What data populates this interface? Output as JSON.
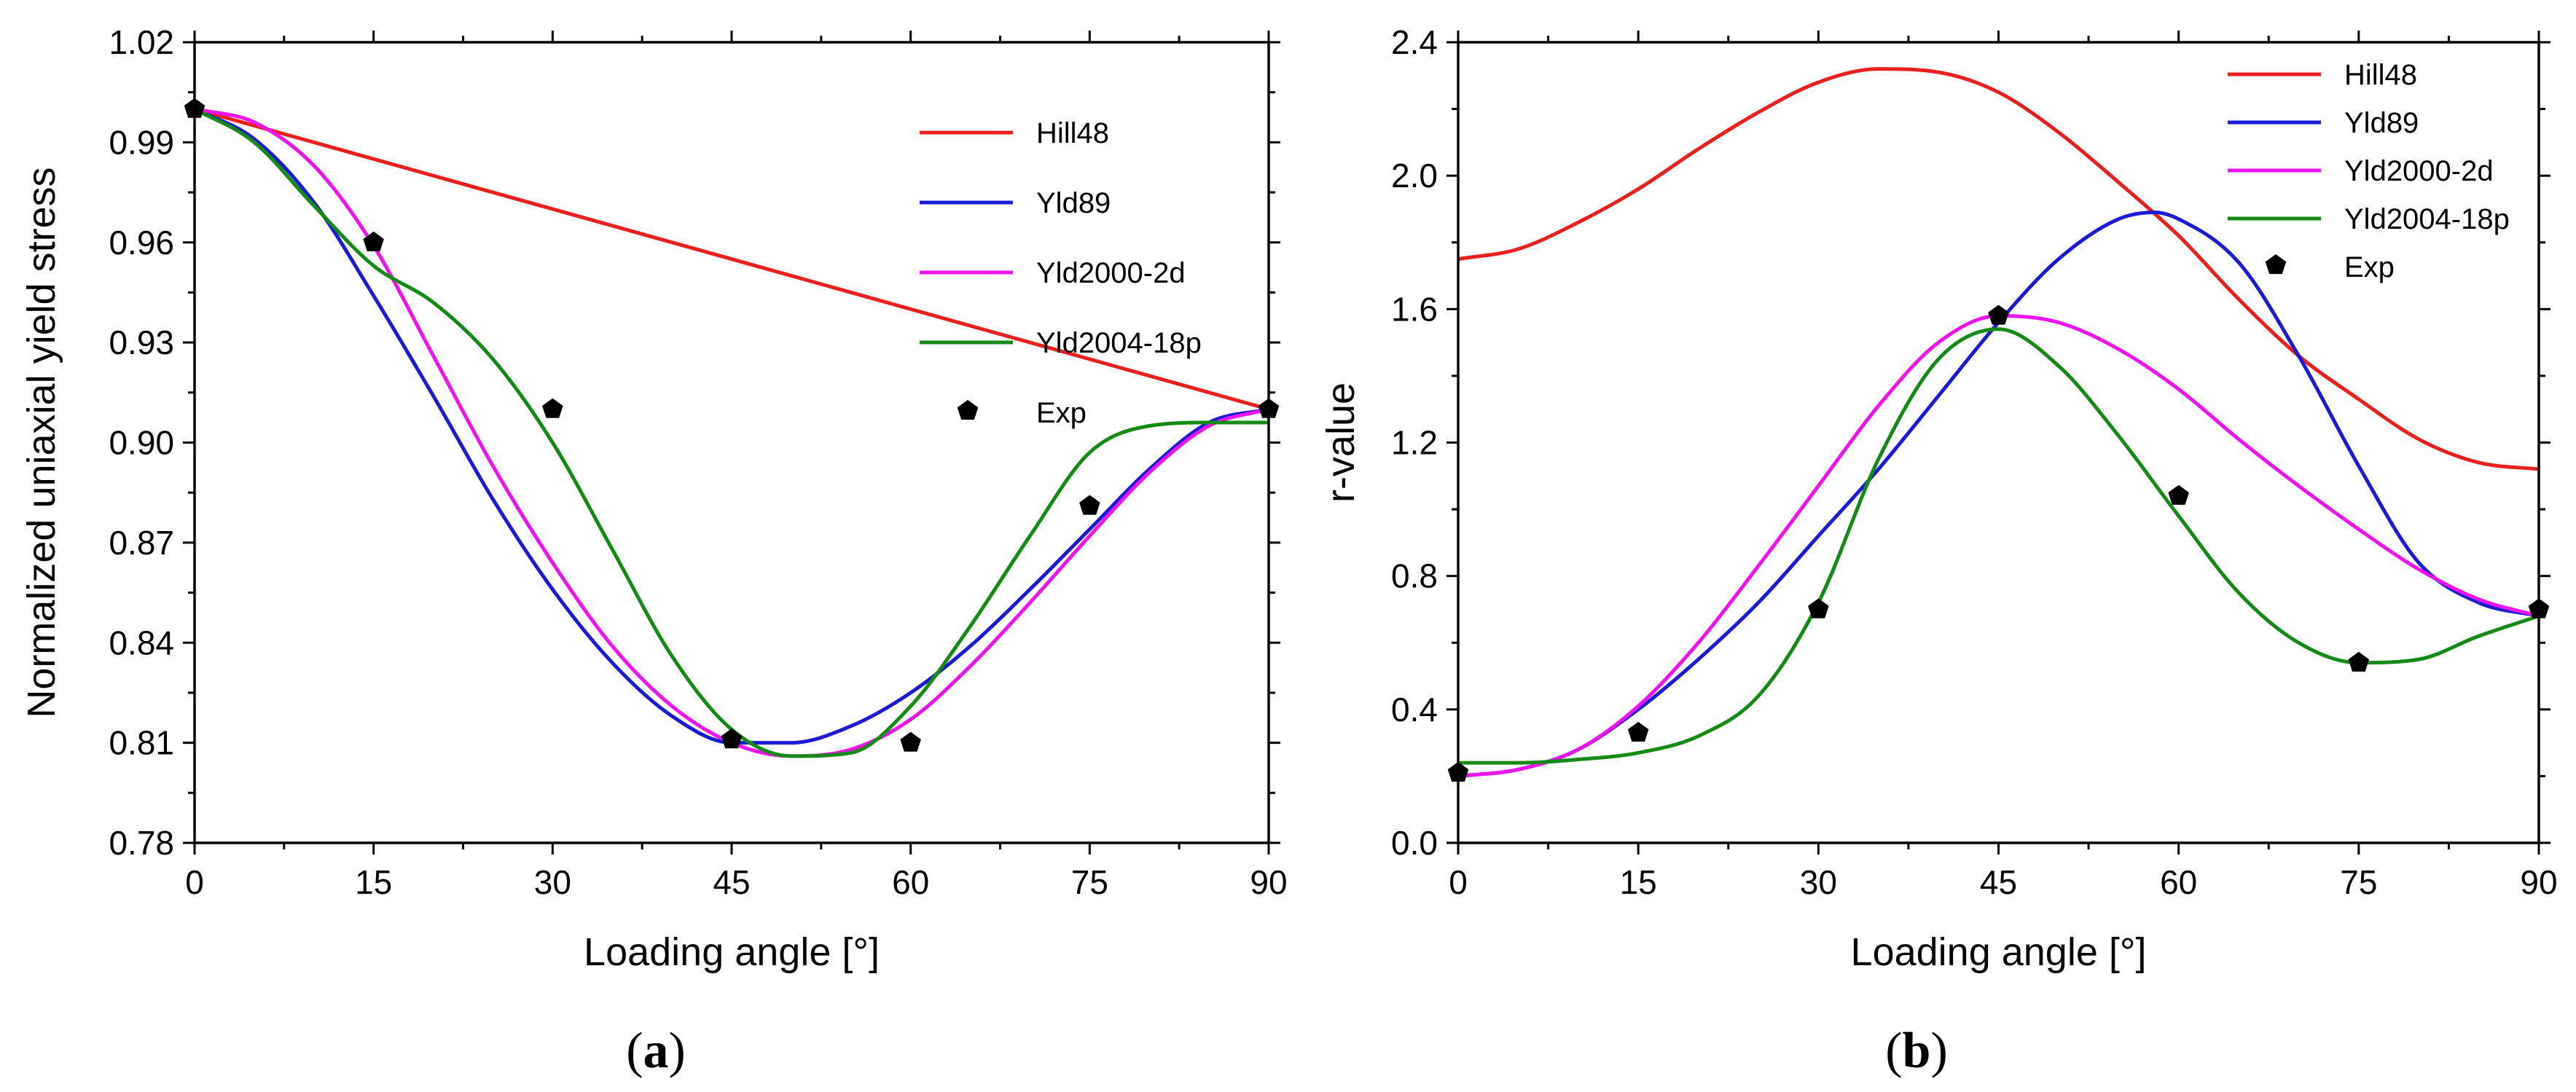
{
  "chart_data": [
    {
      "type": "line",
      "panel_label": "a",
      "xlabel": "Loading angle [°]",
      "ylabel": "Normalized uniaxial yield stress",
      "xlim": [
        0,
        90
      ],
      "ylim": [
        0.78,
        1.02
      ],
      "xticks": [
        0,
        15,
        30,
        45,
        60,
        75,
        90
      ],
      "xtick_labels": [
        "0",
        "15",
        "30",
        "45",
        "60",
        "75",
        "90"
      ],
      "yticks": [
        0.78,
        0.81,
        0.84,
        0.87,
        0.9,
        0.93,
        0.96,
        0.99,
        1.02
      ],
      "ytick_labels": [
        "0.78",
        "0.81",
        "0.84",
        "0.87",
        "0.90",
        "0.93",
        "0.96",
        "0.99",
        "1.02"
      ],
      "legend_position": "top-right",
      "series": [
        {
          "name": "Hill48",
          "color": "#e8201e",
          "x": [
            0,
            90
          ],
          "y": [
            1.0,
            0.91
          ]
        },
        {
          "name": "Yld89",
          "color": "#1b1bd4",
          "x": [
            0,
            5,
            10,
            15,
            20,
            25,
            30,
            35,
            40,
            45,
            50,
            55,
            60,
            65,
            70,
            75,
            80,
            85,
            90
          ],
          "y": [
            1.0,
            0.991,
            0.972,
            0.944,
            0.914,
            0.883,
            0.856,
            0.834,
            0.818,
            0.81,
            0.81,
            0.815,
            0.825,
            0.839,
            0.856,
            0.874,
            0.892,
            0.906,
            0.91
          ]
        },
        {
          "name": "Yld2000-2d",
          "color": "#ee14ee",
          "x": [
            0,
            5,
            10,
            15,
            20,
            25,
            30,
            35,
            40,
            45,
            50,
            55,
            60,
            65,
            70,
            75,
            80,
            85,
            90
          ],
          "y": [
            1.0,
            0.996,
            0.983,
            0.959,
            0.926,
            0.893,
            0.864,
            0.839,
            0.821,
            0.81,
            0.806,
            0.808,
            0.817,
            0.833,
            0.852,
            0.872,
            0.891,
            0.905,
            0.91
          ]
        },
        {
          "name": "Yld2004-18p",
          "color": "#168a16",
          "x": [
            0,
            5,
            10,
            15,
            20,
            25,
            30,
            35,
            40,
            45,
            50,
            55,
            60,
            65,
            70,
            75,
            80,
            85,
            90
          ],
          "y": [
            1.0,
            0.99,
            0.971,
            0.953,
            0.942,
            0.925,
            0.9,
            0.868,
            0.836,
            0.814,
            0.806,
            0.807,
            0.821,
            0.845,
            0.872,
            0.897,
            0.905,
            0.906,
            0.906
          ]
        },
        {
          "name": "Exp",
          "color": "#000000",
          "marker": "pentagon",
          "x": [
            0,
            15,
            30,
            45,
            60,
            75,
            90
          ],
          "y": [
            1.0,
            0.96,
            0.91,
            0.811,
            0.81,
            0.881,
            0.91
          ]
        }
      ]
    },
    {
      "type": "line",
      "panel_label": "b",
      "xlabel": "Loading angle [°]",
      "ylabel": "r-value",
      "xlim": [
        0,
        90
      ],
      "ylim": [
        0.0,
        2.4
      ],
      "xticks": [
        0,
        15,
        30,
        45,
        60,
        75,
        90
      ],
      "xtick_labels": [
        "0",
        "15",
        "30",
        "45",
        "60",
        "75",
        "90"
      ],
      "yticks": [
        0.0,
        0.4,
        0.8,
        1.2,
        1.6,
        2.0,
        2.4
      ],
      "ytick_labels": [
        "0.0",
        "0.4",
        "0.8",
        "1.2",
        "1.6",
        "2.0",
        "2.4"
      ],
      "legend_position": "top-right",
      "series": [
        {
          "name": "Hill48",
          "color": "#e8201e",
          "x": [
            0,
            5,
            10,
            15,
            20,
            25,
            30,
            35,
            40,
            45,
            50,
            55,
            60,
            65,
            70,
            75,
            80,
            85,
            90
          ],
          "y": [
            1.75,
            1.78,
            1.86,
            1.96,
            2.08,
            2.19,
            2.28,
            2.32,
            2.31,
            2.25,
            2.13,
            1.98,
            1.82,
            1.63,
            1.46,
            1.33,
            1.21,
            1.14,
            1.12
          ]
        },
        {
          "name": "Yld89",
          "color": "#1b1bd4",
          "x": [
            0,
            5,
            10,
            15,
            20,
            25,
            30,
            35,
            40,
            45,
            50,
            55,
            58,
            60,
            65,
            70,
            75,
            80,
            85,
            90
          ],
          "y": [
            0.2,
            0.22,
            0.28,
            0.4,
            0.55,
            0.72,
            0.92,
            1.12,
            1.34,
            1.56,
            1.75,
            1.87,
            1.89,
            1.87,
            1.74,
            1.46,
            1.13,
            0.84,
            0.72,
            0.68
          ]
        },
        {
          "name": "Yld2000-2d",
          "color": "#ee14ee",
          "x": [
            0,
            5,
            10,
            15,
            20,
            25,
            30,
            35,
            40,
            45,
            50,
            55,
            60,
            65,
            70,
            75,
            80,
            85,
            90
          ],
          "y": [
            0.2,
            0.22,
            0.28,
            0.41,
            0.6,
            0.83,
            1.07,
            1.31,
            1.5,
            1.58,
            1.56,
            1.48,
            1.36,
            1.21,
            1.07,
            0.94,
            0.82,
            0.73,
            0.68
          ]
        },
        {
          "name": "Yld2004-18p",
          "color": "#168a16",
          "x": [
            0,
            5,
            10,
            15,
            20,
            25,
            30,
            35,
            40,
            45,
            50,
            55,
            60,
            65,
            70,
            75,
            80,
            85,
            90
          ],
          "y": [
            0.24,
            0.24,
            0.25,
            0.27,
            0.32,
            0.44,
            0.72,
            1.15,
            1.45,
            1.54,
            1.43,
            1.22,
            0.98,
            0.75,
            0.6,
            0.54,
            0.55,
            0.62,
            0.68
          ]
        },
        {
          "name": "Exp",
          "color": "#000000",
          "marker": "pentagon",
          "x": [
            0,
            15,
            30,
            45,
            60,
            75,
            90
          ],
          "y": [
            0.21,
            0.33,
            0.7,
            1.58,
            1.04,
            0.54,
            0.7
          ]
        }
      ]
    }
  ]
}
